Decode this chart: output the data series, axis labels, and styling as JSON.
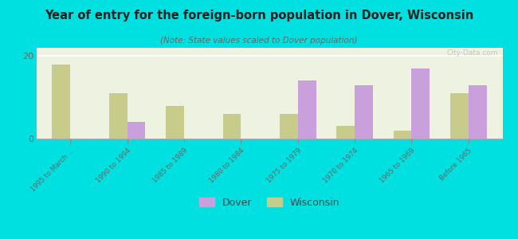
{
  "title": "Year of entry for the foreign-born population in Dover, Wisconsin",
  "subtitle": "(Note: State values scaled to Dover population)",
  "categories": [
    "1995 to March ...",
    "1990 to 1994",
    "1985 to 1989",
    "1980 to 1984",
    "1975 to 1979",
    "1970 to 1974",
    "1965 to 1969",
    "Before 1965"
  ],
  "dover_values": [
    0,
    4,
    0,
    0,
    14,
    13,
    17,
    13
  ],
  "wisconsin_values": [
    18,
    11,
    8,
    6,
    6,
    3,
    2,
    11
  ],
  "dover_color": "#c9a0dc",
  "wisconsin_color": "#c8cc8a",
  "bg_color": "#00e0e0",
  "plot_bg": "#eef2e0",
  "ylim": [
    0,
    22
  ],
  "yticks": [
    0,
    20
  ],
  "bar_width": 0.32,
  "watermark": "City-Data.com"
}
